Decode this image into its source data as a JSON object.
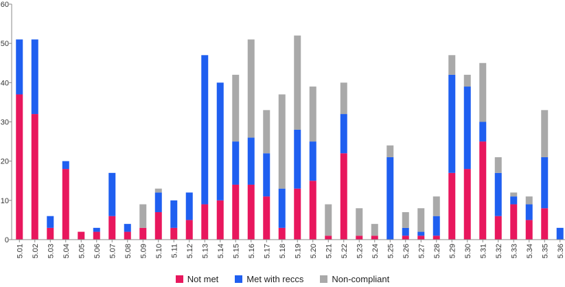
{
  "chart_data": {
    "type": "bar",
    "stacked": true,
    "categories": [
      "5.01",
      "5.02",
      "5.03",
      "5.04",
      "5.05",
      "5.06",
      "5.07",
      "5.08",
      "5.09",
      "5.10",
      "5.11",
      "5.12",
      "5.13",
      "5.14",
      "5.15",
      "5.16",
      "5.17",
      "5.18",
      "5.19",
      "5.20",
      "5.21",
      "5.22",
      "5.23",
      "5.24",
      "5.25",
      "5.26",
      "5.27",
      "5.28",
      "5.29",
      "5.30",
      "5.31",
      "5.32",
      "5.33",
      "5.34",
      "5.35",
      "5.36"
    ],
    "series": [
      {
        "name": "Not met",
        "color": "#e8175d",
        "values": [
          37,
          32,
          3,
          18,
          2,
          2,
          6,
          2,
          3,
          7,
          3,
          5,
          9,
          10,
          14,
          14,
          11,
          3,
          13,
          15,
          1,
          22,
          1,
          1,
          0,
          1,
          1,
          1,
          17,
          18,
          25,
          6,
          9,
          5,
          8,
          0
        ]
      },
      {
        "name": "Met with reccs",
        "color": "#1f5ff0",
        "values": [
          14,
          19,
          3,
          2,
          0,
          1,
          11,
          2,
          0,
          5,
          7,
          7,
          38,
          30,
          11,
          12,
          11,
          10,
          15,
          10,
          0,
          10,
          0,
          0,
          21,
          2,
          1,
          5,
          25,
          21,
          5,
          11,
          2,
          4,
          13,
          3
        ]
      },
      {
        "name": "Non-compliant",
        "color": "#a9a9a9",
        "values": [
          0,
          0,
          0,
          0,
          0,
          0,
          0,
          0,
          6,
          1,
          0,
          0,
          0,
          0,
          17,
          25,
          11,
          24,
          24,
          14,
          8,
          8,
          7,
          3,
          3,
          4,
          6,
          5,
          5,
          3,
          15,
          4,
          1,
          2,
          12,
          0
        ]
      }
    ],
    "xlabel": "",
    "ylabel": "",
    "ylim": [
      0,
      60
    ],
    "yticks": [
      0,
      10,
      20,
      30,
      40,
      50,
      60
    ],
    "grid": false,
    "legend_position": "bottom-center"
  }
}
